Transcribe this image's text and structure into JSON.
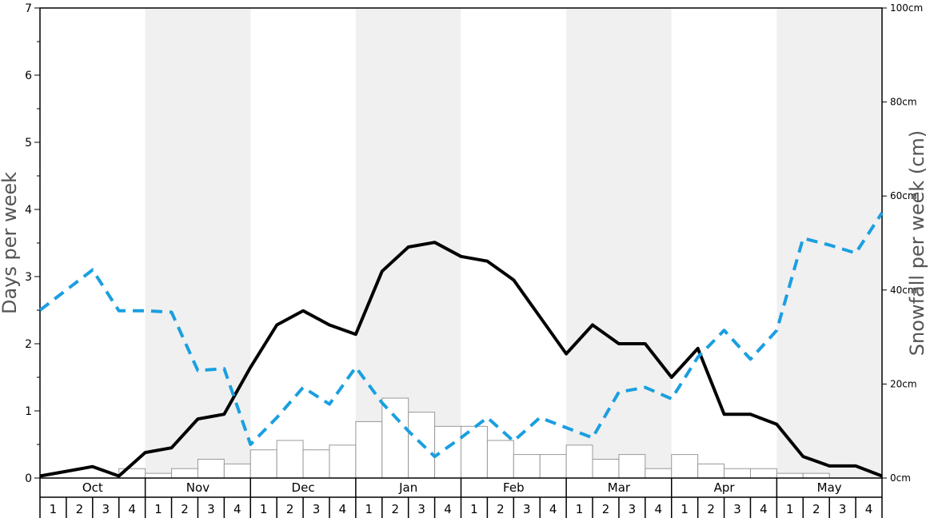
{
  "chart_data": {
    "type": "bar+line",
    "ylabel_left": "Days per week",
    "ylabel_right": "Snowfall per week (cm)",
    "ylim_left": [
      0,
      7
    ],
    "ylim_right": [
      0,
      100
    ],
    "left_ticks": [
      "0",
      "1",
      "2",
      "3",
      "4",
      "5",
      "6",
      "7"
    ],
    "right_ticks": [
      "0cm",
      "20cm",
      "40cm",
      "60cm",
      "80cm",
      "100cm"
    ],
    "months": [
      "Oct",
      "Nov",
      "Dec",
      "Jan",
      "Feb",
      "Mar",
      "Apr",
      "May"
    ],
    "week_labels": [
      "1",
      "2",
      "3",
      "4"
    ],
    "grid": false,
    "legend": "none",
    "colors": {
      "bars_fill": "#ffffff",
      "bars_stroke": "#999999",
      "solid_line": "#000000",
      "dashed_line": "#1a9fe0",
      "band_shade": "#f0f0f0"
    },
    "snowfall_bars_cm": [
      0,
      0,
      0,
      2,
      1,
      2,
      4,
      3,
      6,
      8,
      6,
      7,
      12,
      17,
      14,
      11,
      11,
      8,
      5,
      5,
      7,
      4,
      5,
      2,
      5,
      3,
      2,
      2,
      1,
      1,
      0,
      0
    ],
    "solid_line_days": [
      0.03,
      0.1,
      0.17,
      0.03,
      0.38,
      0.45,
      0.88,
      0.95,
      1.65,
      2.28,
      2.49,
      2.28,
      2.14,
      3.08,
      3.44,
      3.51,
      3.3,
      3.23,
      2.95,
      2.4,
      1.85,
      2.28,
      2.0,
      2.0,
      1.5,
      1.93,
      0.95,
      0.95,
      0.8,
      0.32,
      0.18,
      0.18,
      0.03
    ],
    "dashed_line_days": [
      2.5,
      2.8,
      3.1,
      2.49,
      2.49,
      2.47,
      1.6,
      1.63,
      0.5,
      0.9,
      1.35,
      1.1,
      1.65,
      1.12,
      0.7,
      0.32,
      0.6,
      0.9,
      0.55,
      0.9,
      0.75,
      0.6,
      1.28,
      1.35,
      1.18,
      1.8,
      2.2,
      1.77,
      2.2,
      3.57,
      3.47,
      3.35,
      3.95
    ]
  }
}
